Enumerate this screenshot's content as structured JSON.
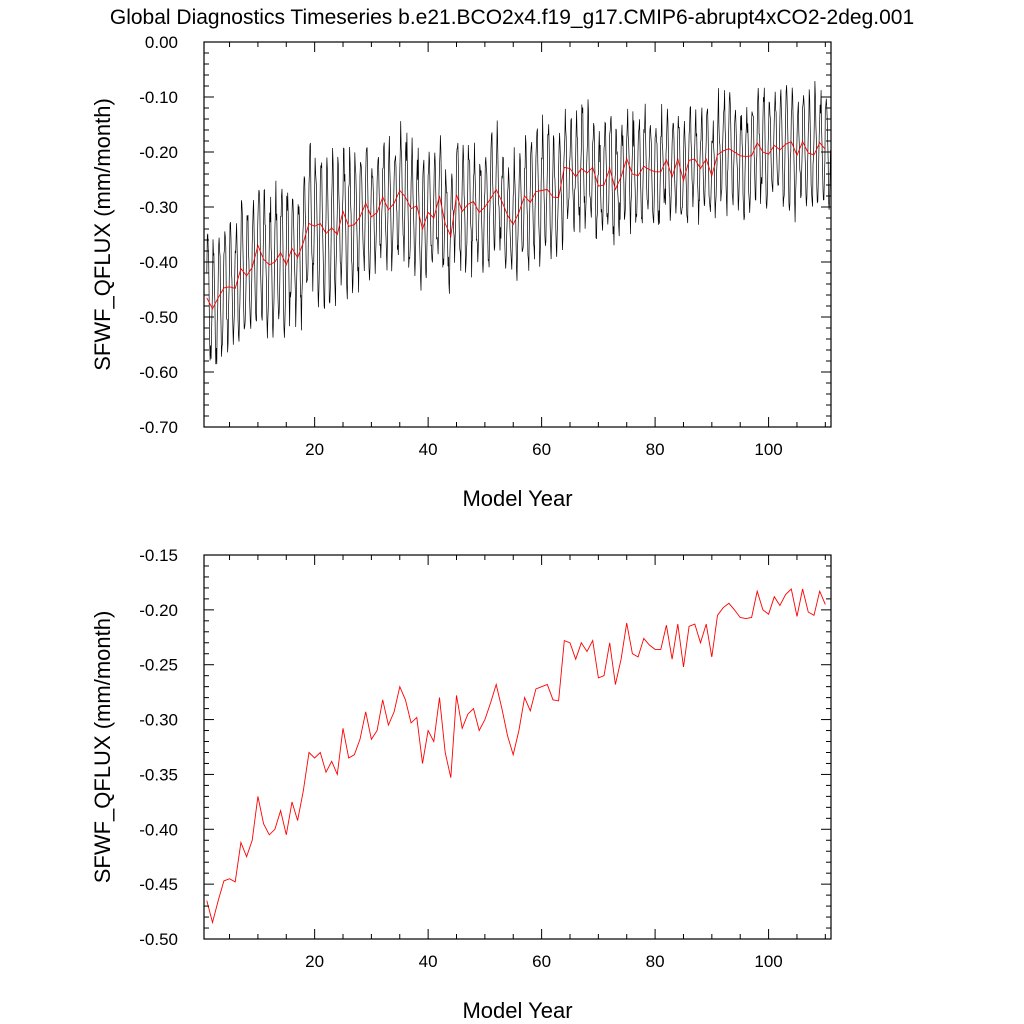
{
  "title": "Global Diagnostics Timeseries b.e21.BCO2x4.f19_g17.CMIP6-abrupt4xCO2-2deg.001",
  "chart_data": [
    {
      "type": "line",
      "xlabel": "Model Year",
      "ylabel": "SFWF_QFLUX (mm/month)",
      "xlim": [
        0.5,
        111
      ],
      "ylim": [
        -0.7,
        0.0
      ],
      "xticks": [
        20,
        40,
        60,
        80,
        100
      ],
      "xtick_labels": [
        "20",
        "40",
        "60",
        "80",
        "100"
      ],
      "yticks": [
        0.0,
        -0.1,
        -0.2,
        -0.3,
        -0.4,
        -0.5,
        -0.6,
        -0.7
      ],
      "ytick_labels": [
        "0.00",
        "-0.10",
        "-0.20",
        "-0.30",
        "-0.40",
        "-0.50",
        "-0.60",
        "-0.70"
      ],
      "grid": false,
      "monthly_series": {
        "color": "#000000",
        "description_of_range": "monthly values oscillating seasonally around the annual mean",
        "annual_amplitude_by_year": {
          "x": [
            1,
            10,
            20,
            30,
            40,
            50,
            60,
            70,
            80,
            90,
            100,
            110
          ],
          "half_range": [
            0.12,
            0.13,
            0.14,
            0.12,
            0.12,
            0.11,
            0.12,
            0.11,
            0.11,
            0.1,
            0.11,
            0.11
          ]
        }
      },
      "series": [
        {
          "color": "#ff0000",
          "x": [
            1,
            2,
            3,
            4,
            5,
            6,
            7,
            8,
            9,
            10,
            11,
            12,
            13,
            14,
            15,
            16,
            17,
            18,
            19,
            20,
            21,
            22,
            23,
            24,
            25,
            26,
            27,
            28,
            29,
            30,
            31,
            32,
            33,
            34,
            35,
            36,
            37,
            38,
            39,
            40,
            41,
            42,
            43,
            44,
            45,
            46,
            47,
            48,
            49,
            50,
            51,
            52,
            53,
            54,
            55,
            56,
            57,
            58,
            59,
            60,
            61,
            62,
            63,
            64,
            65,
            66,
            67,
            68,
            69,
            70,
            71,
            72,
            73,
            74,
            75,
            76,
            77,
            78,
            79,
            80,
            81,
            82,
            83,
            84,
            85,
            86,
            87,
            88,
            89,
            90,
            91,
            92,
            93,
            94,
            95,
            96,
            97,
            98,
            99,
            100,
            101,
            102,
            103,
            104,
            105,
            106,
            107,
            108,
            109,
            110
          ],
          "values": [
            -0.465,
            -0.485,
            -0.465,
            -0.447,
            -0.445,
            -0.448,
            -0.412,
            -0.425,
            -0.41,
            -0.37,
            -0.395,
            -0.405,
            -0.4,
            -0.383,
            -0.405,
            -0.375,
            -0.392,
            -0.365,
            -0.33,
            -0.335,
            -0.33,
            -0.348,
            -0.338,
            -0.35,
            -0.308,
            -0.335,
            -0.332,
            -0.318,
            -0.293,
            -0.318,
            -0.31,
            -0.282,
            -0.305,
            -0.293,
            -0.27,
            -0.282,
            -0.303,
            -0.298,
            -0.34,
            -0.31,
            -0.32,
            -0.28,
            -0.33,
            -0.353,
            -0.278,
            -0.308,
            -0.295,
            -0.29,
            -0.31,
            -0.3,
            -0.285,
            -0.268,
            -0.29,
            -0.315,
            -0.332,
            -0.31,
            -0.28,
            -0.292,
            -0.272,
            -0.27,
            -0.268,
            -0.282,
            -0.283,
            -0.228,
            -0.23,
            -0.245,
            -0.23,
            -0.238,
            -0.228,
            -0.262,
            -0.26,
            -0.23,
            -0.268,
            -0.245,
            -0.212,
            -0.24,
            -0.243,
            -0.226,
            -0.232,
            -0.236,
            -0.236,
            -0.214,
            -0.245,
            -0.213,
            -0.252,
            -0.215,
            -0.213,
            -0.23,
            -0.213,
            -0.243,
            -0.205,
            -0.198,
            -0.194,
            -0.2,
            -0.207,
            -0.208,
            -0.207,
            -0.183,
            -0.2,
            -0.204,
            -0.188,
            -0.196,
            -0.186,
            -0.181,
            -0.206,
            -0.181,
            -0.202,
            -0.205,
            -0.183,
            -0.195
          ]
        }
      ]
    },
    {
      "type": "line",
      "xlabel": "Model Year",
      "ylabel": "SFWF_QFLUX (mm/month)",
      "xlim": [
        0.5,
        111
      ],
      "ylim": [
        -0.5,
        -0.15
      ],
      "xticks": [
        20,
        40,
        60,
        80,
        100
      ],
      "xtick_labels": [
        "20",
        "40",
        "60",
        "80",
        "100"
      ],
      "yticks": [
        -0.15,
        -0.2,
        -0.25,
        -0.3,
        -0.35,
        -0.4,
        -0.45,
        -0.5
      ],
      "ytick_labels": [
        "-0.15",
        "-0.20",
        "-0.25",
        "-0.30",
        "-0.35",
        "-0.40",
        "-0.45",
        "-0.50"
      ],
      "grid": false,
      "series": [
        {
          "color": "#ff0000",
          "x": [
            1,
            2,
            3,
            4,
            5,
            6,
            7,
            8,
            9,
            10,
            11,
            12,
            13,
            14,
            15,
            16,
            17,
            18,
            19,
            20,
            21,
            22,
            23,
            24,
            25,
            26,
            27,
            28,
            29,
            30,
            31,
            32,
            33,
            34,
            35,
            36,
            37,
            38,
            39,
            40,
            41,
            42,
            43,
            44,
            45,
            46,
            47,
            48,
            49,
            50,
            51,
            52,
            53,
            54,
            55,
            56,
            57,
            58,
            59,
            60,
            61,
            62,
            63,
            64,
            65,
            66,
            67,
            68,
            69,
            70,
            71,
            72,
            73,
            74,
            75,
            76,
            77,
            78,
            79,
            80,
            81,
            82,
            83,
            84,
            85,
            86,
            87,
            88,
            89,
            90,
            91,
            92,
            93,
            94,
            95,
            96,
            97,
            98,
            99,
            100,
            101,
            102,
            103,
            104,
            105,
            106,
            107,
            108,
            109,
            110
          ],
          "values": [
            -0.465,
            -0.485,
            -0.465,
            -0.447,
            -0.445,
            -0.448,
            -0.412,
            -0.425,
            -0.41,
            -0.37,
            -0.395,
            -0.405,
            -0.4,
            -0.383,
            -0.405,
            -0.375,
            -0.392,
            -0.365,
            -0.33,
            -0.335,
            -0.33,
            -0.348,
            -0.338,
            -0.35,
            -0.308,
            -0.335,
            -0.332,
            -0.318,
            -0.293,
            -0.318,
            -0.31,
            -0.282,
            -0.305,
            -0.293,
            -0.27,
            -0.282,
            -0.303,
            -0.298,
            -0.34,
            -0.31,
            -0.32,
            -0.28,
            -0.33,
            -0.353,
            -0.278,
            -0.308,
            -0.295,
            -0.29,
            -0.31,
            -0.3,
            -0.285,
            -0.268,
            -0.29,
            -0.315,
            -0.332,
            -0.31,
            -0.28,
            -0.292,
            -0.272,
            -0.27,
            -0.268,
            -0.282,
            -0.283,
            -0.228,
            -0.23,
            -0.245,
            -0.23,
            -0.238,
            -0.228,
            -0.262,
            -0.26,
            -0.23,
            -0.268,
            -0.245,
            -0.212,
            -0.24,
            -0.243,
            -0.226,
            -0.232,
            -0.236,
            -0.236,
            -0.214,
            -0.245,
            -0.213,
            -0.252,
            -0.215,
            -0.213,
            -0.23,
            -0.213,
            -0.243,
            -0.205,
            -0.198,
            -0.194,
            -0.2,
            -0.207,
            -0.208,
            -0.207,
            -0.183,
            -0.2,
            -0.204,
            -0.188,
            -0.196,
            -0.186,
            -0.181,
            -0.206,
            -0.181,
            -0.202,
            -0.205,
            -0.183,
            -0.195
          ]
        }
      ]
    }
  ]
}
